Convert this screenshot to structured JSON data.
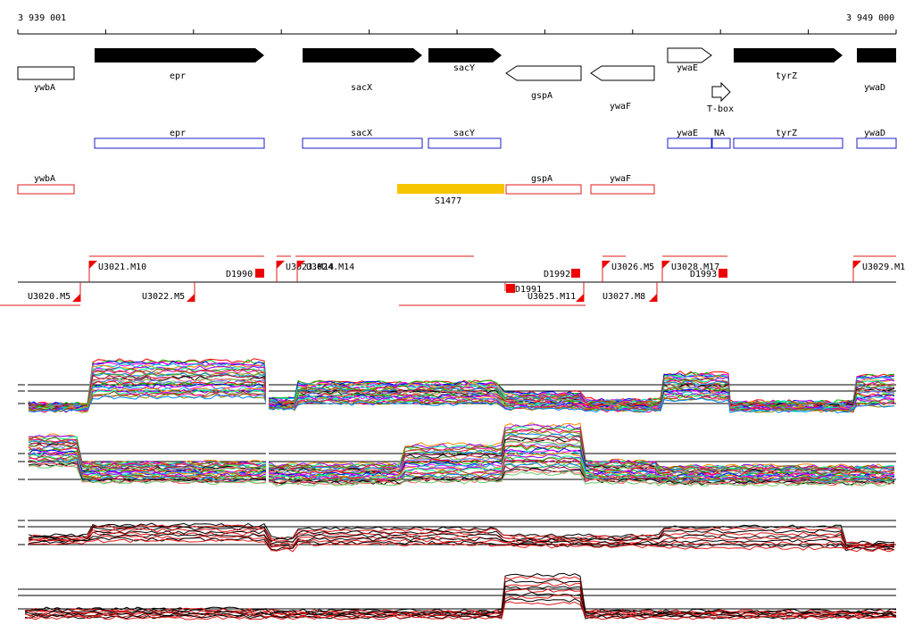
{
  "ruler": {
    "start_label": "3 939 001",
    "end_label": "3 949 000"
  },
  "colors": {
    "gene_fill": "#000000",
    "annotation_stroke": "#1c1cc8",
    "transcript_stroke": "#e01818",
    "segment_fill": "#f6c500",
    "marker_red": "#ee0000",
    "traces": [
      "#ff0000",
      "#00bb00",
      "#0000ff",
      "#ff00ff",
      "#00cccc",
      "#ff8800",
      "#8800ff",
      "#00ff88",
      "#884400",
      "#ff0088",
      "#888800",
      "#0088ff",
      "#44aa44",
      "#aa0044",
      "#000000",
      "#ff6666",
      "#66cc66",
      "#6666ff"
    ]
  },
  "genes": [
    {
      "name": "ywbA",
      "strand": "plus",
      "filled": false
    },
    {
      "name": "epr",
      "strand": "plus",
      "filled": true
    },
    {
      "name": "sacX",
      "strand": "plus",
      "filled": true
    },
    {
      "name": "sacY",
      "strand": "plus",
      "filled": true
    },
    {
      "name": "gspA",
      "strand": "minus",
      "filled": false
    },
    {
      "name": "ywaF",
      "strand": "minus",
      "filled": false
    },
    {
      "name": "ywaE",
      "strand": "plus",
      "filled": false
    },
    {
      "name": "T-box",
      "strand": "plus",
      "filled": false
    },
    {
      "name": "tyrZ",
      "strand": "plus",
      "filled": true
    },
    {
      "name": "ywaD",
      "strand": "plus",
      "filled": true
    }
  ],
  "annotations_blue": [
    "epr",
    "sacX",
    "sacY",
    "ywaE",
    "NA",
    "tyrZ",
    "ywaD"
  ],
  "annotations_red": [
    "ywbA",
    "gspA",
    "ywaF"
  ],
  "segment": {
    "label": "S1477"
  },
  "upper_markers": [
    "U3021.M10",
    "D1990",
    "U3023.M14",
    "U3024.M14",
    "D1992",
    "U3026.M5",
    "U3028.M17",
    "D1993",
    "U3029.M1"
  ],
  "lower_markers": [
    "U3020.M5",
    "U3022.M5",
    "D1991",
    "U3025.M11",
    "U3027.M8"
  ]
}
